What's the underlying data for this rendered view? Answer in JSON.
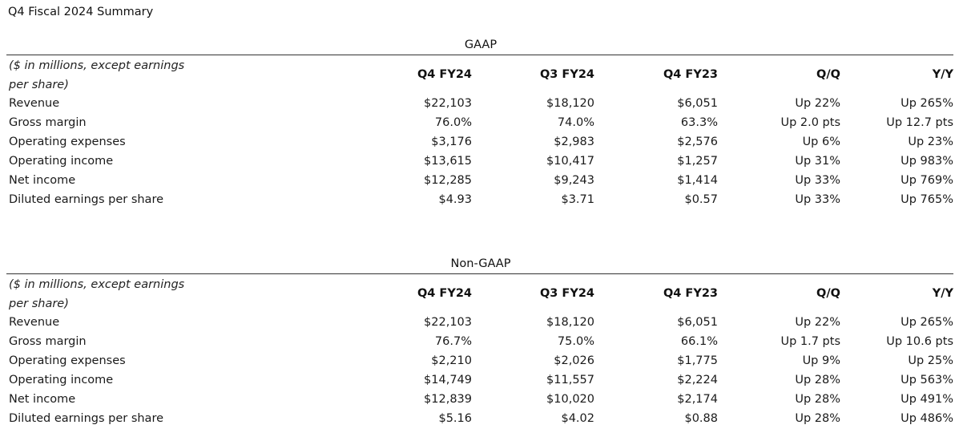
{
  "title": "Q4 Fiscal 2024 Summary",
  "columns": [
    "Q4 FY24",
    "Q3 FY24",
    "Q4 FY23",
    "Q/Q",
    "Y/Y"
  ],
  "sections": [
    {
      "heading": "GAAP",
      "unit_note": "($ in millions, except earnings per share)",
      "rows": [
        {
          "label": "Revenue",
          "values": [
            "$22,103",
            "$18,120",
            "$6,051",
            "Up 22%",
            "Up 265%"
          ]
        },
        {
          "label": "Gross margin",
          "values": [
            "76.0%",
            "74.0%",
            "63.3%",
            "Up 2.0 pts",
            "Up 12.7 pts"
          ]
        },
        {
          "label": "Operating expenses",
          "values": [
            "$3,176",
            "$2,983",
            "$2,576",
            "Up 6%",
            "Up 23%"
          ]
        },
        {
          "label": "Operating income",
          "values": [
            "$13,615",
            "$10,417",
            "$1,257",
            "Up 31%",
            "Up 983%"
          ]
        },
        {
          "label": "Net income",
          "values": [
            "$12,285",
            "$9,243",
            "$1,414",
            "Up 33%",
            "Up 769%"
          ]
        },
        {
          "label": "Diluted earnings per share",
          "values": [
            "$4.93",
            "$3.71",
            "$0.57",
            "Up 33%",
            "Up 765%"
          ]
        }
      ]
    },
    {
      "heading": "Non-GAAP",
      "unit_note": "($ in millions, except earnings per share)",
      "rows": [
        {
          "label": "Revenue",
          "values": [
            "$22,103",
            "$18,120",
            "$6,051",
            "Up 22%",
            "Up 265%"
          ]
        },
        {
          "label": "Gross margin",
          "values": [
            "76.7%",
            "75.0%",
            "66.1%",
            "Up 1.7 pts",
            "Up 10.6 pts"
          ]
        },
        {
          "label": "Operating expenses",
          "values": [
            "$2,210",
            "$2,026",
            "$1,775",
            "Up 9%",
            "Up 25%"
          ]
        },
        {
          "label": "Operating income",
          "values": [
            "$14,749",
            "$11,557",
            "$2,224",
            "Up 28%",
            "Up 563%"
          ]
        },
        {
          "label": "Net income",
          "values": [
            "$12,839",
            "$10,020",
            "$2,174",
            "Up 28%",
            "Up 491%"
          ]
        },
        {
          "label": "Diluted earnings per share",
          "values": [
            "$5.16",
            "$4.02",
            "$0.88",
            "Up 28%",
            "Up 486%"
          ]
        }
      ]
    }
  ]
}
